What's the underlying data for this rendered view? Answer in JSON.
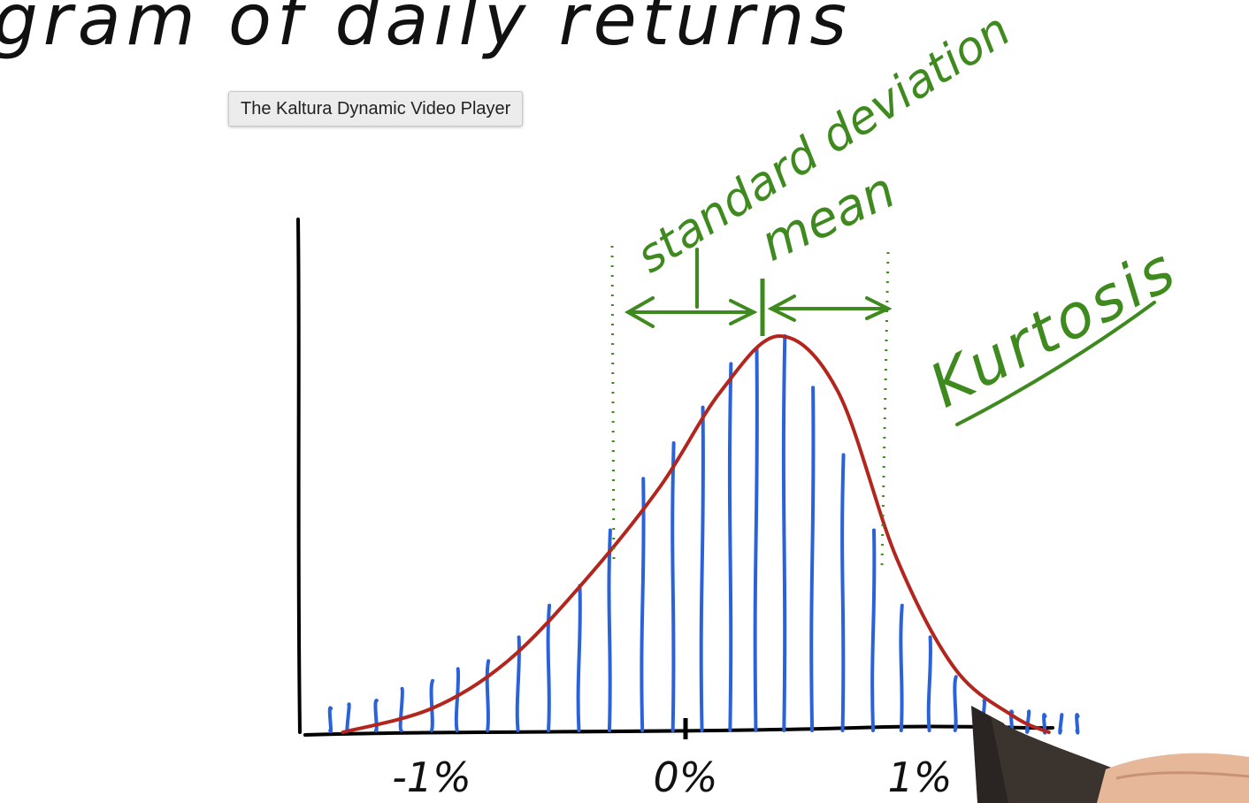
{
  "tooltip": {
    "text": "The Kaltura Dynamic Video Player"
  },
  "chart_data": {
    "type": "bar",
    "title": "gram of daily returns",
    "x_tick_labels": [
      "-1%",
      "0%",
      "1%"
    ],
    "x_tick_values": [
      -1,
      0,
      1
    ],
    "xlim": [
      -1.45,
      1.75
    ],
    "annotations": [
      "standard deviation",
      "mean",
      "Kurtosis"
    ],
    "mean": 0.4,
    "std_dev_range": [
      -0.35,
      1.15
    ],
    "bars": [
      {
        "x": -1.4,
        "h": 0.06
      },
      {
        "x": -1.33,
        "h": 0.07
      },
      {
        "x": -1.22,
        "h": 0.08
      },
      {
        "x": -1.12,
        "h": 0.11
      },
      {
        "x": -1.0,
        "h": 0.13
      },
      {
        "x": -0.9,
        "h": 0.16
      },
      {
        "x": -0.78,
        "h": 0.18
      },
      {
        "x": -0.66,
        "h": 0.24
      },
      {
        "x": -0.54,
        "h": 0.32
      },
      {
        "x": -0.42,
        "h": 0.37
      },
      {
        "x": -0.3,
        "h": 0.51
      },
      {
        "x": -0.17,
        "h": 0.64
      },
      {
        "x": -0.05,
        "h": 0.73
      },
      {
        "x": 0.07,
        "h": 0.82
      },
      {
        "x": 0.19,
        "h": 0.93
      },
      {
        "x": 0.3,
        "h": 0.97
      },
      {
        "x": 0.42,
        "h": 1.0
      },
      {
        "x": 0.54,
        "h": 0.87
      },
      {
        "x": 0.67,
        "h": 0.7
      },
      {
        "x": 0.8,
        "h": 0.51
      },
      {
        "x": 0.92,
        "h": 0.32
      },
      {
        "x": 1.04,
        "h": 0.24
      },
      {
        "x": 1.15,
        "h": 0.14
      },
      {
        "x": 1.27,
        "h": 0.08
      },
      {
        "x": 1.39,
        "h": 0.05
      },
      {
        "x": 1.46,
        "h": 0.05
      },
      {
        "x": 1.53,
        "h": 0.04
      },
      {
        "x": 1.6,
        "h": 0.04
      },
      {
        "x": 1.67,
        "h": 0.04
      }
    ],
    "curve": [
      {
        "x": -1.35,
        "y": 0.0
      },
      {
        "x": -1.0,
        "y": 0.06
      },
      {
        "x": -0.7,
        "y": 0.18
      },
      {
        "x": -0.4,
        "y": 0.38
      },
      {
        "x": -0.1,
        "y": 0.62
      },
      {
        "x": 0.15,
        "y": 0.86
      },
      {
        "x": 0.4,
        "y": 1.0
      },
      {
        "x": 0.65,
        "y": 0.86
      },
      {
        "x": 0.9,
        "y": 0.44
      },
      {
        "x": 1.15,
        "y": 0.16
      },
      {
        "x": 1.4,
        "y": 0.04
      },
      {
        "x": 1.55,
        "y": 0.0
      }
    ],
    "grid": false,
    "legend": "none",
    "colors": {
      "bars": "#2b62d9",
      "curve": "#b3261e",
      "annotation": "#3f8a1e",
      "axes": "#000000"
    }
  }
}
